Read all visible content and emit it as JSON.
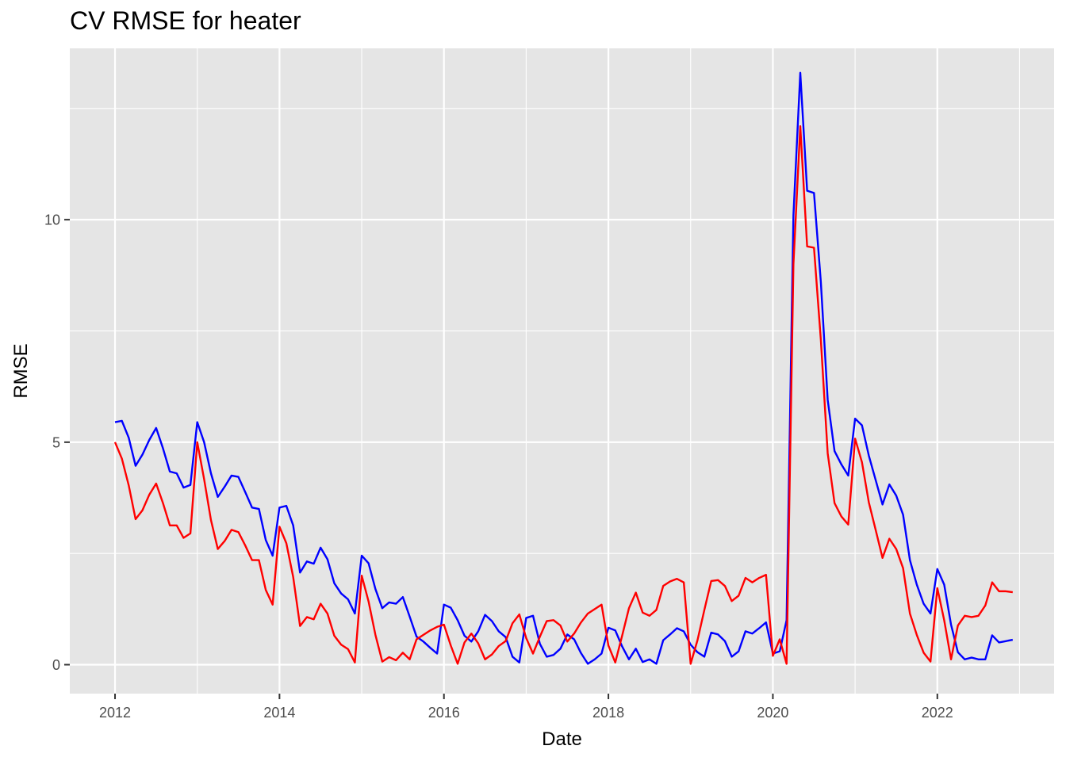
{
  "chart_data": {
    "type": "line",
    "title": "CV RMSE for heater",
    "xlabel": "Date",
    "ylabel": "RMSE",
    "x_ticks": [
      {
        "label": "2012",
        "value": 2012.0
      },
      {
        "label": "2014",
        "value": 2014.0
      },
      {
        "label": "2016",
        "value": 2016.0
      },
      {
        "label": "2018",
        "value": 2018.0
      },
      {
        "label": "2020",
        "value": 2020.0
      },
      {
        "label": "2022",
        "value": 2022.0
      }
    ],
    "y_ticks": [
      {
        "label": "0",
        "value": 0
      },
      {
        "label": "5",
        "value": 5
      },
      {
        "label": "10",
        "value": 10
      }
    ],
    "xlim": [
      2011.45,
      2023.42
    ],
    "ylim": [
      -0.65,
      13.85
    ],
    "grid": true,
    "background": "#e5e5e5",
    "x_start": "2012-01",
    "x_step_months": 1,
    "series": [
      {
        "color": "#0000ff",
        "values": [
          5.45,
          5.48,
          5.1,
          4.47,
          4.72,
          5.05,
          5.32,
          4.86,
          4.34,
          4.3,
          3.98,
          4.04,
          5.45,
          5.0,
          4.3,
          3.77,
          4.0,
          4.25,
          4.22,
          3.88,
          3.53,
          3.5,
          2.8,
          2.45,
          3.53,
          3.57,
          3.13,
          2.07,
          2.32,
          2.27,
          2.63,
          2.37,
          1.83,
          1.6,
          1.47,
          1.15,
          2.45,
          2.28,
          1.7,
          1.27,
          1.4,
          1.37,
          1.52,
          1.08,
          0.63,
          0.52,
          0.38,
          0.25,
          1.35,
          1.28,
          1.0,
          0.65,
          0.52,
          0.75,
          1.12,
          0.98,
          0.75,
          0.62,
          0.18,
          0.05,
          1.05,
          1.1,
          0.47,
          0.18,
          0.22,
          0.36,
          0.68,
          0.57,
          0.26,
          0.02,
          0.12,
          0.25,
          0.83,
          0.77,
          0.41,
          0.12,
          0.36,
          0.06,
          0.12,
          0.02,
          0.55,
          0.68,
          0.82,
          0.75,
          0.45,
          0.28,
          0.18,
          0.72,
          0.68,
          0.53,
          0.18,
          0.3,
          0.75,
          0.7,
          0.82,
          0.95,
          0.25,
          0.3,
          1.0,
          10.1,
          13.3,
          10.65,
          10.6,
          8.6,
          5.95,
          4.8,
          4.5,
          4.25,
          5.53,
          5.38,
          4.7,
          4.15,
          3.6,
          4.05,
          3.8,
          3.37,
          2.35,
          1.8,
          1.37,
          1.15,
          2.15,
          1.8,
          0.9,
          0.28,
          0.12,
          0.16,
          0.12,
          0.12,
          0.66,
          0.5,
          0.53,
          0.56
        ]
      },
      {
        "color": "#ff0000",
        "values": [
          5.0,
          4.63,
          4.03,
          3.27,
          3.47,
          3.82,
          4.07,
          3.63,
          3.13,
          3.13,
          2.85,
          2.95,
          5.0,
          4.17,
          3.25,
          2.6,
          2.78,
          3.03,
          2.98,
          2.68,
          2.35,
          2.35,
          1.68,
          1.35,
          3.1,
          2.73,
          1.97,
          0.87,
          1.07,
          1.02,
          1.37,
          1.15,
          0.65,
          0.45,
          0.35,
          0.05,
          2.0,
          1.42,
          0.67,
          0.07,
          0.17,
          0.1,
          0.27,
          0.12,
          0.57,
          0.67,
          0.77,
          0.85,
          0.9,
          0.43,
          0.02,
          0.5,
          0.7,
          0.48,
          0.12,
          0.23,
          0.42,
          0.53,
          0.93,
          1.13,
          0.6,
          0.25,
          0.63,
          0.98,
          1.0,
          0.88,
          0.52,
          0.7,
          0.95,
          1.15,
          1.25,
          1.35,
          0.43,
          0.05,
          0.65,
          1.27,
          1.62,
          1.17,
          1.1,
          1.23,
          1.77,
          1.87,
          1.93,
          1.85,
          0.02,
          0.55,
          1.23,
          1.88,
          1.9,
          1.77,
          1.43,
          1.55,
          1.95,
          1.85,
          1.95,
          2.02,
          0.2,
          0.57,
          0.02,
          9.0,
          12.1,
          9.4,
          9.37,
          7.3,
          4.75,
          3.63,
          3.33,
          3.15,
          5.08,
          4.55,
          3.65,
          3.03,
          2.4,
          2.83,
          2.6,
          2.17,
          1.15,
          0.67,
          0.27,
          0.07,
          1.72,
          1.0,
          0.12,
          0.88,
          1.1,
          1.07,
          1.1,
          1.33,
          1.85,
          1.65,
          1.65,
          1.63
        ]
      }
    ]
  }
}
